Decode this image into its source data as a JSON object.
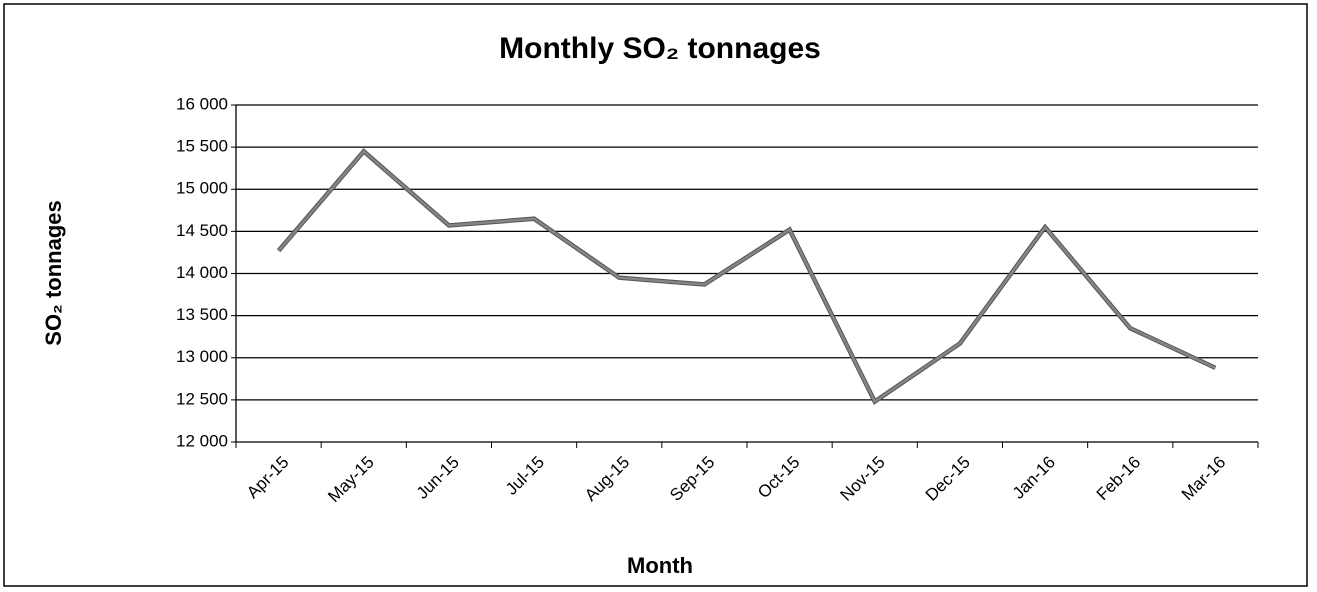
{
  "chart_data": {
    "type": "line",
    "title": "Monthly SO₂ tonnages",
    "x_label": "Month",
    "y_label": "SO₂  tonnages",
    "categories": [
      "Apr-15",
      "May-15",
      "Jun-15",
      "Jul-15",
      "Aug-15",
      "Sep-15",
      "Oct-15",
      "Nov-15",
      "Dec-15",
      "Jan-16",
      "Feb-16",
      "Mar-16"
    ],
    "values": [
      14270,
      15450,
      14570,
      14650,
      13950,
      13870,
      14520,
      12480,
      13170,
      14550,
      13350,
      12880
    ],
    "color": "#858585",
    "ylim": [
      12000,
      16000
    ],
    "yticks": [
      {
        "value": 12000,
        "label": "12 000"
      },
      {
        "value": 12500,
        "label": "12 500"
      },
      {
        "value": 13000,
        "label": "13 000"
      },
      {
        "value": 13500,
        "label": "13 500"
      },
      {
        "value": 14000,
        "label": "14 000"
      },
      {
        "value": 14500,
        "label": "14 500"
      },
      {
        "value": 15000,
        "label": "15 000"
      },
      {
        "value": 15500,
        "label": "15 500"
      },
      {
        "value": 16000,
        "label": "16 000"
      }
    ],
    "grid": true
  }
}
